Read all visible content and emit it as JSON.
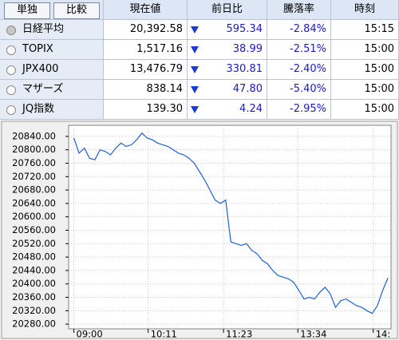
{
  "tabs": [
    "単独",
    "比較"
  ],
  "table": {
    "headers": [
      "現在値",
      "前日比",
      "騰落率",
      "時刻"
    ],
    "rows": [
      [
        "日経平均",
        "20,392.58",
        "595.34",
        "-2.84%",
        "15:15"
      ],
      [
        "TOPIX",
        "1,517.16",
        "38.99",
        "-2.51%",
        "15:00"
      ],
      [
        "JPX400",
        "13,476.79",
        "330.81",
        "-2.40%",
        "15:00"
      ],
      [
        "マザーズ",
        "838.14",
        "47.80",
        "-5.40%",
        "15:00"
      ],
      [
        "JQ指数",
        "139.30",
        "4.24",
        "-2.95%",
        "15:00"
      ]
    ]
  },
  "chart_data": {
    "type": "line",
    "color": "#1f5fd6",
    "grid": true,
    "x": [
      0,
      5,
      10,
      15,
      20,
      25,
      30,
      35,
      40,
      45,
      50,
      55,
      60,
      65,
      70,
      75,
      80,
      85,
      90,
      95,
      100,
      105,
      110,
      115,
      120,
      125,
      130,
      135,
      140,
      145,
      150,
      155,
      160,
      165,
      170,
      175,
      180,
      185,
      190,
      195,
      200,
      205,
      210,
      215,
      220,
      225,
      230,
      235,
      240,
      245,
      250,
      255,
      260,
      265,
      270,
      275,
      280,
      285,
      290,
      295,
      300
    ],
    "values": [
      20835,
      20790,
      20805,
      20775,
      20770,
      20800,
      20795,
      20785,
      20805,
      20820,
      20810,
      20815,
      20830,
      20850,
      20835,
      20830,
      20820,
      20815,
      20810,
      20800,
      20790,
      20785,
      20775,
      20760,
      20735,
      20710,
      20680,
      20650,
      20640,
      20650,
      20525,
      20520,
      20515,
      20520,
      20500,
      20490,
      20470,
      20460,
      20440,
      20425,
      20420,
      20415,
      20405,
      20380,
      20355,
      20360,
      20355,
      20375,
      20390,
      20370,
      20330,
      20350,
      20355,
      20345,
      20335,
      20330,
      20320,
      20312,
      20335,
      20380,
      20418
    ],
    "xlim": [
      -5,
      303
    ],
    "xticks": [
      {
        "value": 0,
        "label": "09:00"
      },
      {
        "value": 71,
        "label": "10:11"
      },
      {
        "value": 143,
        "label": "11:23"
      },
      {
        "value": 214,
        "label": "13:34"
      },
      {
        "value": 286,
        "label": "14:"
      }
    ],
    "ylim": [
      20266,
      20873
    ],
    "yticks": [
      {
        "value": 20280,
        "label": "20280.00"
      },
      {
        "value": 20320,
        "label": "20320.00"
      },
      {
        "value": 20360,
        "label": "20360.00"
      },
      {
        "value": 20400,
        "label": "20400.00"
      },
      {
        "value": 20440,
        "label": "20440.00"
      },
      {
        "value": 20480,
        "label": "20480.00"
      },
      {
        "value": 20520,
        "label": "20520.00"
      },
      {
        "value": 20560,
        "label": "20560.00"
      },
      {
        "value": 20600,
        "label": "20600.00"
      },
      {
        "value": 20640,
        "label": "20640.00"
      },
      {
        "value": 20680,
        "label": "20680.00"
      },
      {
        "value": 20720,
        "label": "20720.00"
      },
      {
        "value": 20760,
        "label": "20760.00"
      },
      {
        "value": 20800,
        "label": "20800.00"
      },
      {
        "value": 20840,
        "label": "20840.00"
      }
    ]
  }
}
